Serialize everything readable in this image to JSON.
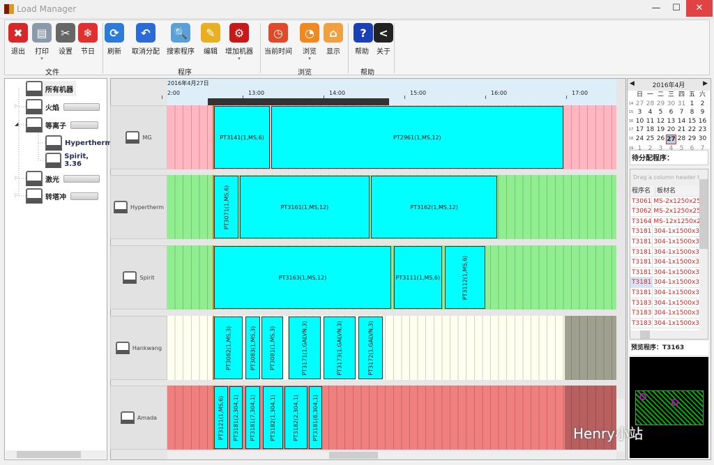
{
  "window": {
    "title": "Load Manager",
    "min": "—",
    "max": "☐",
    "close": "✕"
  },
  "ribbon": {
    "groups": [
      {
        "label": "文件"
      },
      {
        "label": "程序"
      },
      {
        "label": "浏览"
      },
      {
        "label": "帮助"
      }
    ],
    "buttons": [
      {
        "label": "退出",
        "icon": "exit-icon",
        "color": "#d62828",
        "glyph": "✖"
      },
      {
        "label": "打印",
        "icon": "printer-icon",
        "color": "#8a9aa8",
        "glyph": "▤",
        "drop": true
      },
      {
        "label": "设置",
        "icon": "tools-icon",
        "color": "#666666",
        "glyph": "✂"
      },
      {
        "label": "节日",
        "icon": "holiday-icon",
        "color": "#e03030",
        "glyph": "❄"
      },
      {
        "label": "刷新",
        "icon": "refresh-icon",
        "color": "#2b7bd8",
        "glyph": "⟳"
      },
      {
        "label": "取消分配",
        "icon": "undo-icon",
        "color": "#2b6bd8",
        "glyph": "↶"
      },
      {
        "label": "搜索程序",
        "icon": "search-icon",
        "color": "#5aa0d8",
        "glyph": "🔍"
      },
      {
        "label": "编辑",
        "icon": "pencil-icon",
        "color": "#e8b020",
        "glyph": "✎"
      },
      {
        "label": "增加机器",
        "icon": "gear-icon",
        "color": "#c81818",
        "glyph": "⚙",
        "drop": true
      },
      {
        "label": "当前时间",
        "icon": "alarm-clock-icon",
        "color": "#e04a28",
        "glyph": "◷"
      },
      {
        "label": "浏览",
        "icon": "clock-icon",
        "color": "#f08a20",
        "glyph": "◔",
        "drop": true
      },
      {
        "label": "显示",
        "icon": "tag-icon",
        "color": "#f0a040",
        "glyph": "⌂"
      },
      {
        "label": "帮助",
        "icon": "help-icon",
        "color": "#1a40b8",
        "glyph": "?"
      },
      {
        "label": "关于",
        "icon": "about-icon",
        "color": "#222222",
        "glyph": "<"
      }
    ]
  },
  "tree": {
    "root": "所有机器",
    "nodes": [
      {
        "label": "火焰"
      },
      {
        "label": "等离子"
      },
      {
        "label": "Hypertherm"
      },
      {
        "label": "Spirit, 3.36"
      },
      {
        "label": "激光"
      },
      {
        "label": "转塔冲"
      }
    ]
  },
  "gantt": {
    "date": "2016年4月27日",
    "ticks": [
      "2:00",
      "13:00",
      "14:00",
      "15:00",
      "16:00",
      "17:00"
    ],
    "rows": [
      {
        "machine": "MG",
        "bg": "#ffb6c1",
        "tail": "#ffb6c1",
        "jobs": [
          {
            "label": "PT3141(1,MS,6)",
            "start": "12:39",
            "end": "13:20"
          },
          {
            "label": "PT2961(1,MS,12)",
            "start": "13:21",
            "end": "16:58"
          }
        ]
      },
      {
        "machine": "Hypertherm",
        "bg": "#90ee90",
        "tail": "#90ee90",
        "jobs": [
          {
            "label": "PT3071(1,MS,6)",
            "start": "12:39",
            "end": "12:57"
          },
          {
            "label": "PT3161(1,MS,12)",
            "start": "12:58",
            "end": "14:34"
          },
          {
            "label": "PT3162(1,MS,12)",
            "start": "14:35",
            "end": "16:09"
          }
        ]
      },
      {
        "machine": "Spirit",
        "bg": "#90ee90",
        "tail": "#90ee90",
        "jobs": [
          {
            "label": "PT3163(1,MS,12)",
            "start": "12:39",
            "end": "14:50"
          },
          {
            "label": "PT3111(1,MS,6)",
            "start": "14:52",
            "end": "15:28"
          },
          {
            "label": "PT3112(1,MS,6)",
            "start": "15:30",
            "end": "16:00"
          }
        ]
      },
      {
        "machine": "Hankwang",
        "bg": "#fffff0",
        "tail": "#a0a090",
        "jobs": [
          {
            "label": "PT3082(1,MS,3)",
            "start": "12:39",
            "end": "13:00"
          },
          {
            "label": "PT3083(1,MS,3)",
            "start": "13:02",
            "end": "13:13"
          },
          {
            "label": "PT3081(1,MS,3)",
            "start": "13:14",
            "end": "13:30"
          },
          {
            "label": "PT3171(1,GALVN,3)",
            "start": "13:34",
            "end": "13:58"
          },
          {
            "label": "PT3173(1,GALVN,3)",
            "start": "14:00",
            "end": "14:24"
          },
          {
            "label": "PT3172(1,GALVN,3)",
            "start": "14:26",
            "end": "14:44"
          }
        ]
      },
      {
        "machine": "Amada",
        "bg": "#f08080",
        "tail": "#b86060",
        "jobs": [
          {
            "label": "PT3121(1,MS,6)",
            "start": "12:39",
            "end": "12:49"
          },
          {
            "label": "PT3181(2,304,1)",
            "start": "12:50",
            "end": "13:00"
          },
          {
            "label": "PT3181(7,304,1)",
            "start": "13:02",
            "end": "13:13"
          },
          {
            "label": "PT3182(1,304,1)",
            "start": "13:15",
            "end": "13:30"
          },
          {
            "label": "PT3182(2,304,1)",
            "start": "13:31",
            "end": "13:48"
          },
          {
            "label": "PT3181(8,304,1)",
            "start": "13:49",
            "end": "13:59"
          }
        ]
      }
    ]
  },
  "calendar": {
    "title": "2016年4月",
    "prev": "◀",
    "next": "▶",
    "weekdays": [
      "日",
      "一",
      "二",
      "三",
      "四",
      "五",
      "六"
    ],
    "weeks": [
      {
        "no": "14",
        "days": [
          "27",
          "28",
          "29",
          "30",
          "31",
          "1",
          "2"
        ]
      },
      {
        "no": "15",
        "days": [
          "3",
          "4",
          "5",
          "6",
          "7",
          "8",
          "9"
        ]
      },
      {
        "no": "16",
        "days": [
          "10",
          "11",
          "12",
          "13",
          "14",
          "15",
          "16"
        ]
      },
      {
        "no": "17",
        "days": [
          "17",
          "18",
          "19",
          "20",
          "21",
          "22",
          "23"
        ]
      },
      {
        "no": "18",
        "days": [
          "24",
          "25",
          "26",
          "27",
          "28",
          "29",
          "30"
        ]
      },
      {
        "no": "19",
        "days": [
          "1",
          "2",
          "3",
          "4",
          "5",
          "6",
          "7"
        ]
      }
    ],
    "selected": "27"
  },
  "pending": {
    "label": "待分配程序：",
    "drag_hint": "Drag a column header h",
    "columns": [
      "程序名",
      "板材名"
    ],
    "rows": [
      [
        "T3061",
        "MS-2x1250x25"
      ],
      [
        "T3062",
        "MS-2x1250x25"
      ],
      [
        "T3164",
        "MS-12x1250x2"
      ],
      [
        "T3181",
        "304-1x1500x3"
      ],
      [
        "T3181",
        "304-1x1500x3"
      ],
      [
        "T3181",
        "304-1x1500x3"
      ],
      [
        "T3181",
        "304-1x1500x3"
      ],
      [
        "T3181",
        "304-1x1500x3"
      ],
      [
        "T3181",
        "304-1x1500x3"
      ],
      [
        "T3181",
        "304-1x1500x3"
      ],
      [
        "T3183",
        "304-1x1500x3"
      ],
      [
        "T3183",
        "304-1x1500x3"
      ],
      [
        "T3183",
        "304-1x1500x3"
      ]
    ]
  },
  "preview": {
    "label": "预览程序：T3163"
  },
  "watermark": "Henry小站"
}
